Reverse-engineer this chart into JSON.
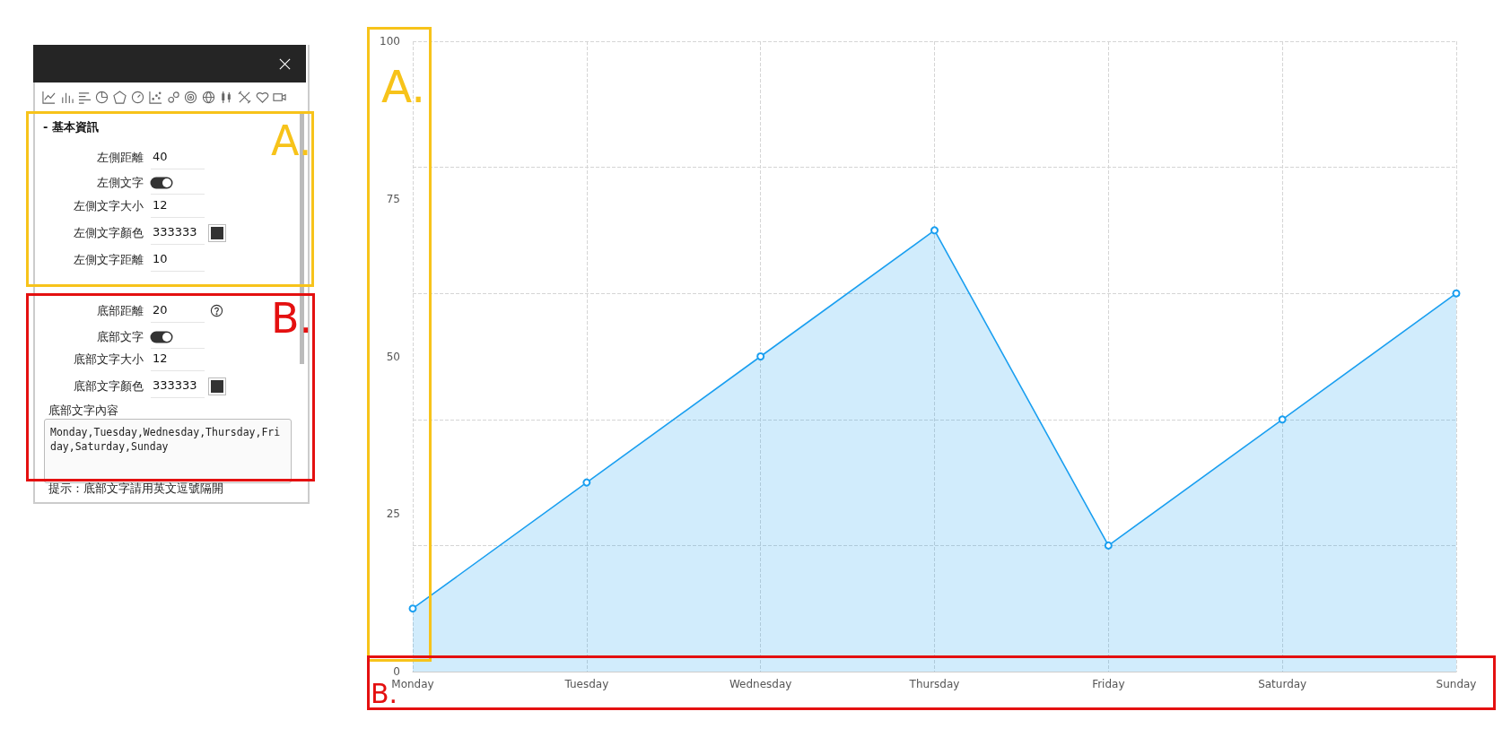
{
  "chart_data": [
    {
      "type": "other",
      "annotations": [
        "A.",
        "B.",
        "- 基本資訊",
        "左側距離",
        "40",
        "左側文字",
        "左側文字大小",
        "12",
        "左側文字顏色",
        "333333",
        "左側文字距離",
        "10",
        "底部距離",
        "20",
        "底部文字",
        "底部文字大小",
        "12",
        "底部文字顏色",
        "333333",
        "底部文字內容",
        "Monday,Tuesday,Wednesday,Thursday,Friday,Saturday,Sunday",
        "提示：底部文字請用英文逗號隔開"
      ]
    },
    {
      "type": "area",
      "categories": [
        "Monday",
        "Tuesday",
        "Wednesday",
        "Thursday",
        "Friday",
        "Saturday",
        "Sunday"
      ],
      "series": [
        {
          "color": "#1a9ff0",
          "values": [
            10,
            30,
            50,
            70,
            20,
            40,
            60
          ]
        }
      ],
      "ylim": [
        0,
        100
      ],
      "yticks": [
        0,
        25,
        50,
        75,
        100
      ],
      "grid": true,
      "marker": "circle",
      "annotations": [
        "A.",
        "B."
      ]
    }
  ]
}
